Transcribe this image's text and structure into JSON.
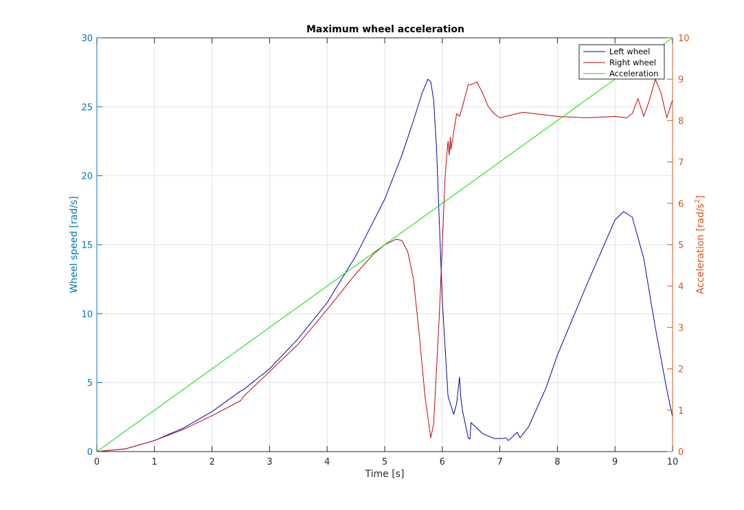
{
  "chart_data": {
    "type": "line",
    "title": "Maximum wheel acceleration",
    "xlabel": "Time [s]",
    "ylabel_left": "Wheel speed [rad/s]",
    "ylabel_right_main": "Acceleration [rad/s",
    "ylabel_right_sup": "2",
    "ylabel_right_end": "]",
    "xlim": [
      0,
      10
    ],
    "ylim_left": [
      0,
      30
    ],
    "ylim_right": [
      0,
      10
    ],
    "x_ticks": [
      0,
      1,
      2,
      3,
      4,
      5,
      6,
      7,
      8,
      9,
      10
    ],
    "y_left_ticks": [
      0,
      5,
      10,
      15,
      20,
      25,
      30
    ],
    "y_right_ticks": [
      0,
      1,
      2,
      3,
      4,
      5,
      6,
      7,
      8,
      9,
      10
    ],
    "grid": true,
    "legend_position": "top-right",
    "colors": {
      "left_axis": "#0072bd",
      "right_axis": "#d95319",
      "left_wheel": "#0000a8",
      "right_wheel": "#c00000",
      "acceleration": "#00dd00"
    },
    "series": [
      {
        "name": "Left wheel",
        "axis": "left",
        "x": [
          0,
          0.5,
          1.0,
          1.5,
          2.0,
          2.5,
          2.55,
          3.0,
          3.5,
          4.0,
          4.5,
          5.0,
          5.3,
          5.5,
          5.65,
          5.75,
          5.8,
          5.85,
          5.9,
          6.0,
          6.1,
          6.2,
          6.25,
          6.3,
          6.32,
          6.35,
          6.4,
          6.45,
          6.48,
          6.5,
          6.55,
          6.7,
          6.9,
          7.05,
          7.1,
          7.15,
          7.2,
          7.3,
          7.35,
          7.5,
          7.8,
          8.0,
          8.5,
          9.0,
          9.15,
          9.3,
          9.5,
          9.7,
          9.9,
          10.0
        ],
        "values": [
          0,
          0.2,
          0.8,
          1.7,
          2.9,
          4.4,
          4.5,
          6.0,
          8.2,
          10.8,
          14.2,
          18.3,
          21.5,
          24.0,
          26.0,
          27.0,
          26.8,
          25.5,
          22.0,
          11.0,
          4.0,
          2.7,
          3.5,
          5.4,
          4.0,
          3.0,
          2.0,
          1.0,
          0.9,
          2.1,
          1.9,
          1.3,
          0.95,
          0.95,
          1.0,
          0.8,
          1.0,
          1.4,
          1.0,
          1.8,
          4.6,
          7.0,
          12.0,
          16.8,
          17.4,
          17.0,
          14.0,
          9.0,
          4.5,
          2.5
        ]
      },
      {
        "name": "Right wheel",
        "axis": "left",
        "x": [
          0,
          0.5,
          1.0,
          1.5,
          2.0,
          2.5,
          2.55,
          3.0,
          3.5,
          4.0,
          4.5,
          4.8,
          5.0,
          5.2,
          5.3,
          5.4,
          5.5,
          5.6,
          5.7,
          5.8,
          5.85,
          5.9,
          5.95,
          6.0,
          6.05,
          6.1,
          6.12,
          6.14,
          6.15,
          6.2,
          6.25,
          6.3,
          6.35,
          6.4,
          6.45,
          6.5,
          6.6,
          6.7,
          6.8,
          6.9,
          7.0,
          7.2,
          7.4,
          7.6,
          8.0,
          8.5,
          9.0,
          9.2,
          9.3,
          9.4,
          9.5,
          9.6,
          9.7,
          9.8,
          9.9,
          10.0
        ],
        "values": [
          0,
          0.2,
          0.8,
          1.6,
          2.6,
          3.7,
          4.0,
          5.8,
          7.8,
          10.3,
          12.9,
          14.3,
          15.0,
          15.4,
          15.3,
          14.5,
          12.5,
          8.5,
          4.0,
          1.0,
          2.0,
          6.0,
          10.0,
          15.0,
          20.0,
          22.5,
          21.5,
          22.8,
          21.9,
          23.2,
          24.5,
          24.3,
          25.0,
          25.8,
          26.6,
          26.6,
          26.8,
          26.0,
          25.0,
          24.5,
          24.2,
          24.4,
          24.6,
          24.5,
          24.3,
          24.2,
          24.3,
          24.2,
          24.5,
          25.6,
          24.3,
          25.5,
          27.0,
          26.0,
          24.2,
          25.5
        ]
      },
      {
        "name": "Acceleration",
        "axis": "right",
        "x": [
          0,
          10
        ],
        "values": [
          0,
          10
        ]
      }
    ]
  }
}
